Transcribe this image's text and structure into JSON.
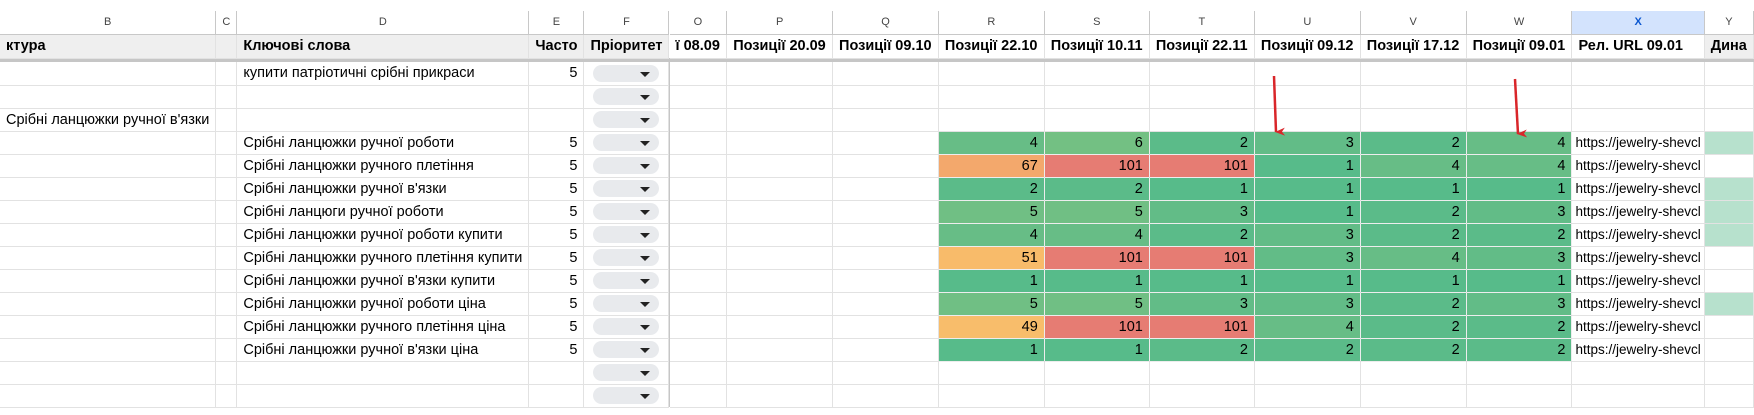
{
  "columns": [
    "B",
    "C",
    "D",
    "E",
    "F",
    "O",
    "P",
    "Q",
    "R",
    "S",
    "T",
    "U",
    "V",
    "W",
    "X",
    "Y"
  ],
  "selected_column": "X",
  "headers": {
    "B": "ктура",
    "C": "",
    "D": "Ключові слова",
    "E": "Часто",
    "F": "Пріоритет",
    "O": "ї 08.09",
    "P": "Позиції 20.09",
    "Q": "Позиції 09.10",
    "R": "Позиції 22.10",
    "S": "Позиції 10.11",
    "T": "Позиції 22.11",
    "U": "Позиції 09.12",
    "V": "Позиції 17.12",
    "W": "Позиції 09.01",
    "X": "Рел. URL 09.01",
    "Y": "Дина"
  },
  "colors": {
    "color_scale": {
      "1": "#57bb8a",
      "2": "#5bbb89",
      "3": "#62bc87",
      "4": "#67bd86",
      "5": "#70bf84",
      "6": "#73c083",
      "49": "#f8bd6b",
      "51": "#f8bb6a",
      "67": "#f3a86c",
      "101": "#e67c73"
    },
    "dynamics_fill": "#b7e1cd",
    "arrow": "#d9262a",
    "selected_header": "#d3e3fd"
  },
  "rows": [
    {
      "b": "",
      "d": "купити патріотичні срібні прикраси",
      "e": "5",
      "dropdown": true,
      "positions": null,
      "url": "",
      "dyn": false
    },
    {
      "b": "",
      "d": "",
      "e": "",
      "dropdown": true,
      "positions": null,
      "url": "",
      "dyn": false
    },
    {
      "b": "Срібні ланцюжки ручної в'язки",
      "d": "",
      "e": "",
      "dropdown": true,
      "positions": null,
      "url": "",
      "dyn": false
    },
    {
      "b": "",
      "d": "Срібні ланцюжки ручної роботи",
      "e": "5",
      "dropdown": true,
      "positions": [
        4,
        6,
        2,
        3,
        2,
        4
      ],
      "url": "https://jewelry-shevcl",
      "dyn": true
    },
    {
      "b": "",
      "d": "Срібні ланцюжки ручного плетіння",
      "e": "5",
      "dropdown": true,
      "positions": [
        67,
        101,
        101,
        1,
        4,
        4
      ],
      "url": "https://jewelry-shevcl",
      "dyn": false
    },
    {
      "b": "",
      "d": "Срібні ланцюжки ручної в'язки",
      "e": "5",
      "dropdown": true,
      "positions": [
        2,
        2,
        1,
        1,
        1,
        1
      ],
      "url": "https://jewelry-shevcl",
      "dyn": true
    },
    {
      "b": "",
      "d": "Срібні ланцюги ручної роботи",
      "e": "5",
      "dropdown": true,
      "positions": [
        5,
        5,
        3,
        1,
        2,
        3
      ],
      "url": "https://jewelry-shevcl",
      "dyn": true
    },
    {
      "b": "",
      "d": "Срібні ланцюжки ручної роботи купити",
      "e": "5",
      "dropdown": true,
      "positions": [
        4,
        4,
        2,
        3,
        2,
        2
      ],
      "url": "https://jewelry-shevcl",
      "dyn": true
    },
    {
      "b": "",
      "d": "Срібні ланцюжки ручного плетіння купити",
      "e": "5",
      "dropdown": true,
      "positions": [
        51,
        101,
        101,
        3,
        4,
        3
      ],
      "url": "https://jewelry-shevcl",
      "dyn": false
    },
    {
      "b": "",
      "d": "Срібні ланцюжки ручної в'язки купити",
      "e": "5",
      "dropdown": true,
      "positions": [
        1,
        1,
        1,
        1,
        1,
        1
      ],
      "url": "https://jewelry-shevcl",
      "dyn": false
    },
    {
      "b": "",
      "d": "Срібні ланцюжки ручної роботи ціна",
      "e": "5",
      "dropdown": true,
      "positions": [
        5,
        5,
        3,
        3,
        2,
        3
      ],
      "url": "https://jewelry-shevcl",
      "dyn": true
    },
    {
      "b": "",
      "d": "Срібні ланцюжки ручного плетіння ціна",
      "e": "5",
      "dropdown": true,
      "positions": [
        49,
        101,
        101,
        4,
        2,
        2
      ],
      "url": "https://jewelry-shevcl",
      "dyn": false
    },
    {
      "b": "",
      "d": "Срібні ланцюжки ручної в'язки ціна",
      "e": "5",
      "dropdown": true,
      "positions": [
        1,
        1,
        2,
        2,
        2,
        2
      ],
      "url": "https://jewelry-shevcl",
      "dyn": false
    },
    {
      "b": "",
      "d": "",
      "e": "",
      "dropdown": true,
      "positions": null,
      "url": "",
      "dyn": false
    },
    {
      "b": "",
      "d": "",
      "e": "",
      "dropdown": true,
      "positions": null,
      "url": "",
      "dyn": false
    }
  ],
  "annotations": {
    "arrows_on_columns": [
      "U",
      "W"
    ]
  }
}
